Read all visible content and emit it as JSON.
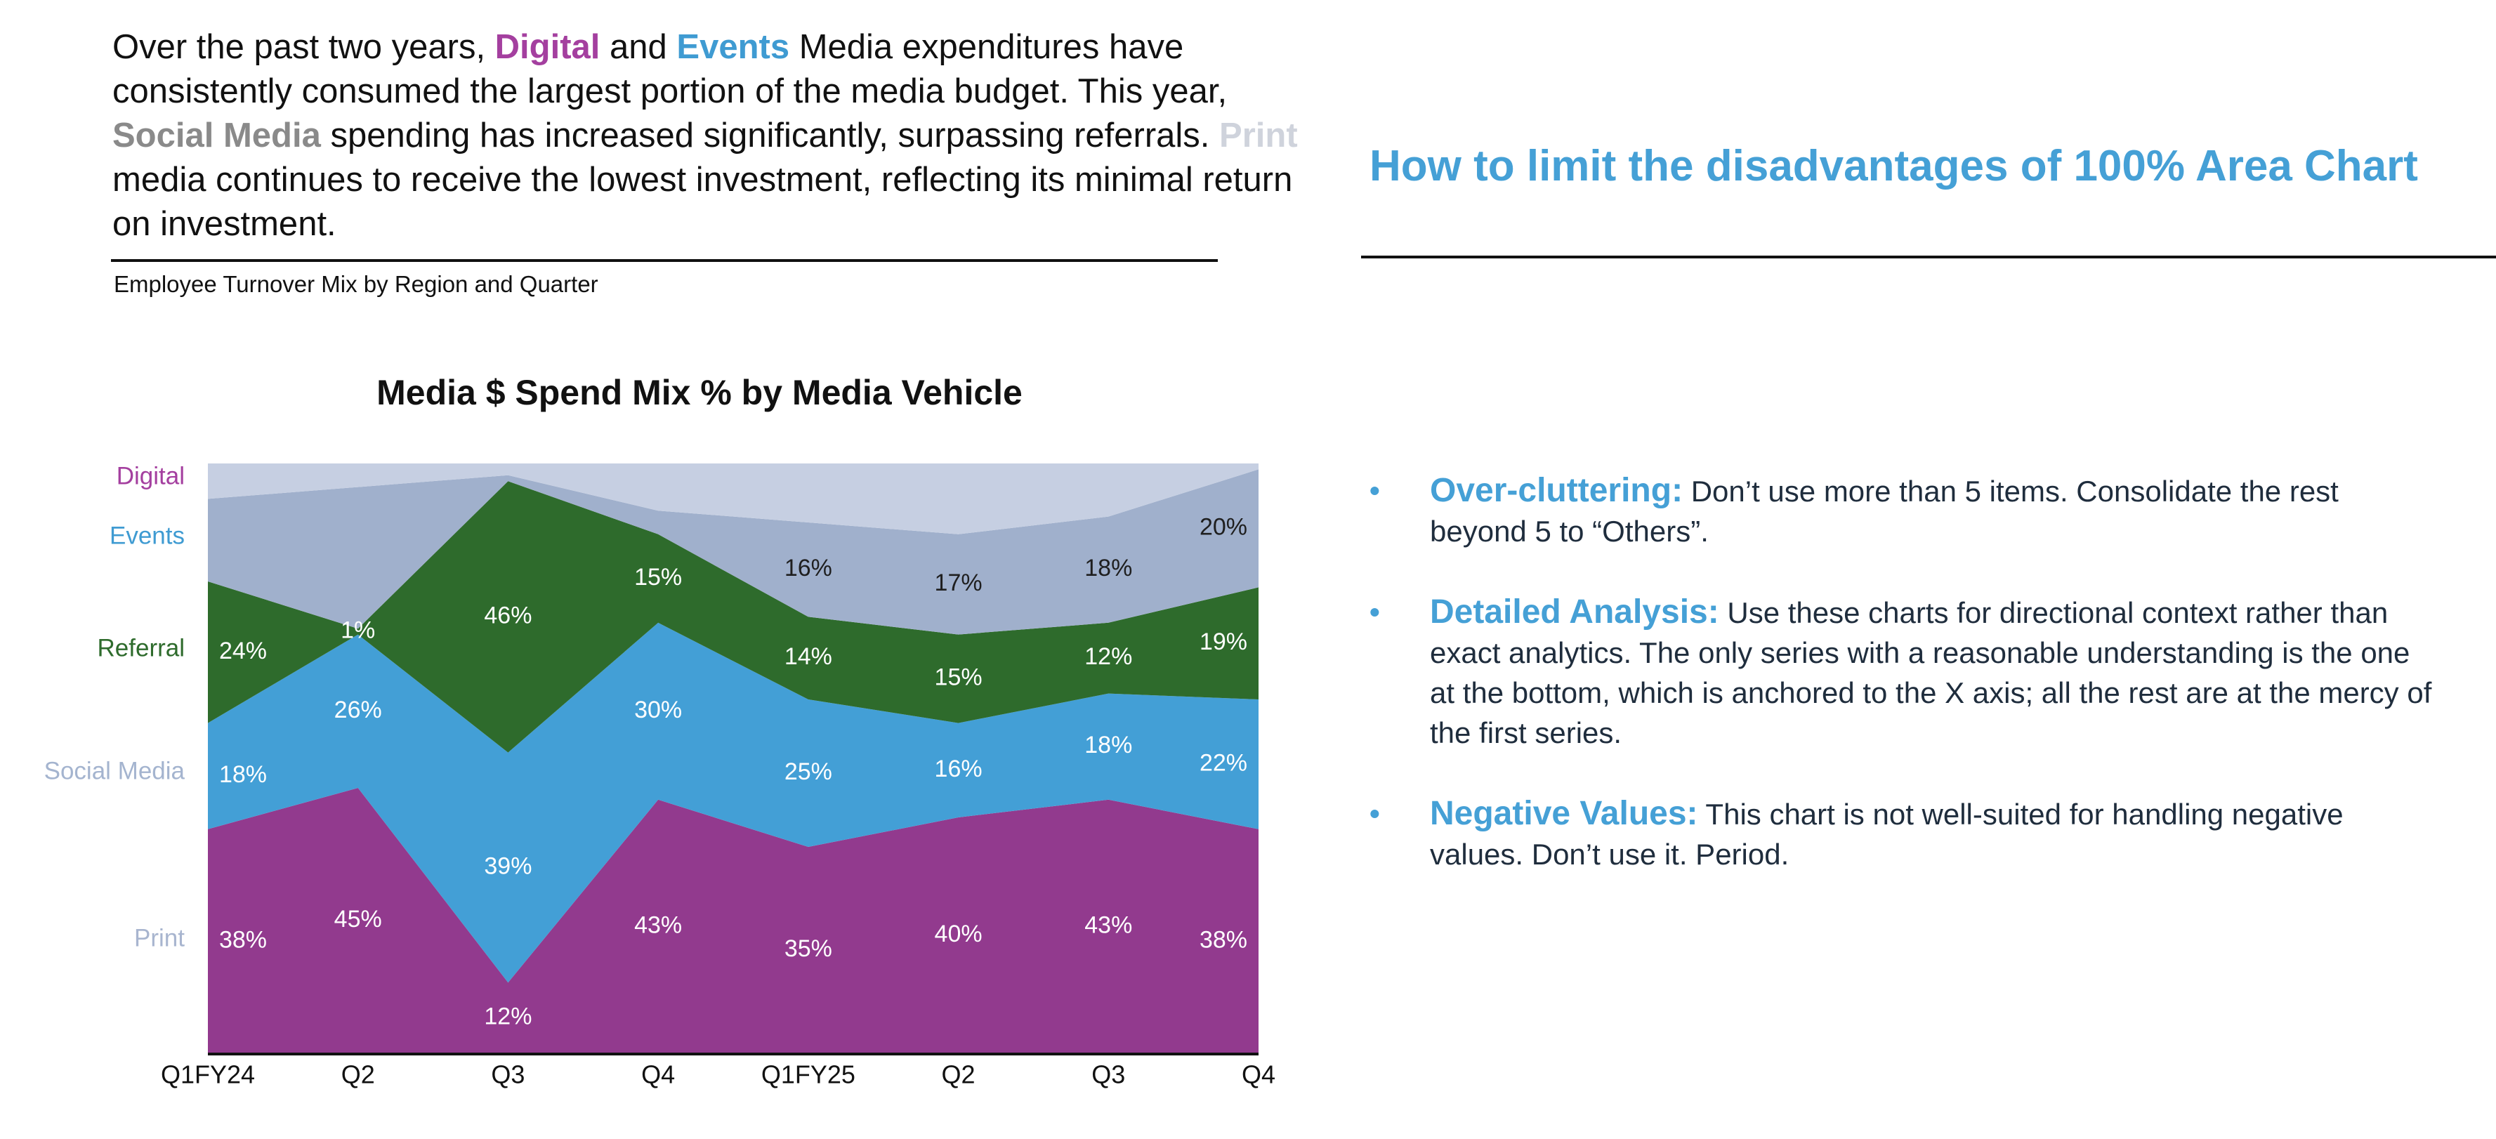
{
  "intro": {
    "p1": "Over the past two years, ",
    "digital": "Digital",
    "p2": " and ",
    "events": "Events",
    "p3": " Media expenditures have consistently consumed the largest portion of the media budget. This year, ",
    "social": "Social Media",
    "p4": " spending has increased significantly, surpassing referrals. ",
    "print": "Print",
    "p5": " media continues to receive the lowest investment, reflecting its minimal return on investment."
  },
  "subtitle": "Employee Turnover Mix by Region and Quarter",
  "right": {
    "title": "How to limit the disadvantages of 100% Area Chart",
    "bullet_glyph": "•",
    "tips": [
      {
        "head": "Over-cluttering:",
        "body": " Don’t use more than 5 items. Consolidate the rest beyond 5 to “Others”."
      },
      {
        "head": "Detailed Analysis:",
        "body": " Use these charts for directional context rather than exact analytics. The only series with a reasonable understanding is the one at the bottom, which is anchored to the X axis; all the rest are at the mercy of the first series."
      },
      {
        "head": "Negative Values:",
        "body": " This chart is not well-suited for handling negative values. Don’t use it. Period."
      }
    ]
  },
  "chart_data": {
    "type": "area",
    "stacked_percent": true,
    "title": "Media $ Spend Mix % by Media Vehicle",
    "xlabel": "",
    "ylabel": "",
    "ylim": [
      0,
      100
    ],
    "grid": false,
    "legend": "left (labels beside series)",
    "categories": [
      "Q1FY24",
      "Q2",
      "Q3",
      "Q4",
      "Q1FY25",
      "Q2",
      "Q3",
      "Q4"
    ],
    "series": [
      {
        "name": "Digital",
        "color": "#923a8e",
        "label_color": "#a43f9f",
        "values": [
          38,
          45,
          12,
          43,
          35,
          40,
          43,
          38
        ],
        "data_labels": [
          "38%",
          "45%",
          "12%",
          "43%",
          "35%",
          "40%",
          "43%",
          "38%"
        ]
      },
      {
        "name": "Events",
        "color": "#439fd6",
        "label_color": "#3f9bd2",
        "values": [
          18,
          26,
          39,
          30,
          25,
          16,
          18,
          22
        ],
        "data_labels": [
          "18%",
          "26%",
          "39%",
          "30%",
          "25%",
          "16%",
          "18%",
          "22%"
        ]
      },
      {
        "name": "Referral",
        "color": "#2e6b2c",
        "label_color": "#2e6b2c",
        "values": [
          24,
          1,
          46,
          15,
          14,
          15,
          12,
          19
        ],
        "data_labels": [
          "24%",
          "1%",
          "46%",
          "15%",
          "14%",
          "15%",
          "12%",
          "19%"
        ]
      },
      {
        "name": "Social Media",
        "color": "#a0b0cc",
        "label_color": "#a4b4cf",
        "values": [
          14,
          24,
          1,
          4,
          16,
          17,
          18,
          20
        ],
        "data_labels": [
          "",
          "",
          "",
          "",
          "16%",
          "17%",
          "18%",
          "20%"
        ]
      },
      {
        "name": "Print",
        "color": "#c6cfe2",
        "label_color": "#a8b5cf",
        "values": [
          6,
          4,
          2,
          8,
          10,
          12,
          9,
          1
        ],
        "data_labels": [
          "",
          "",
          "",
          "",
          "",
          "",
          "",
          ""
        ]
      }
    ]
  }
}
